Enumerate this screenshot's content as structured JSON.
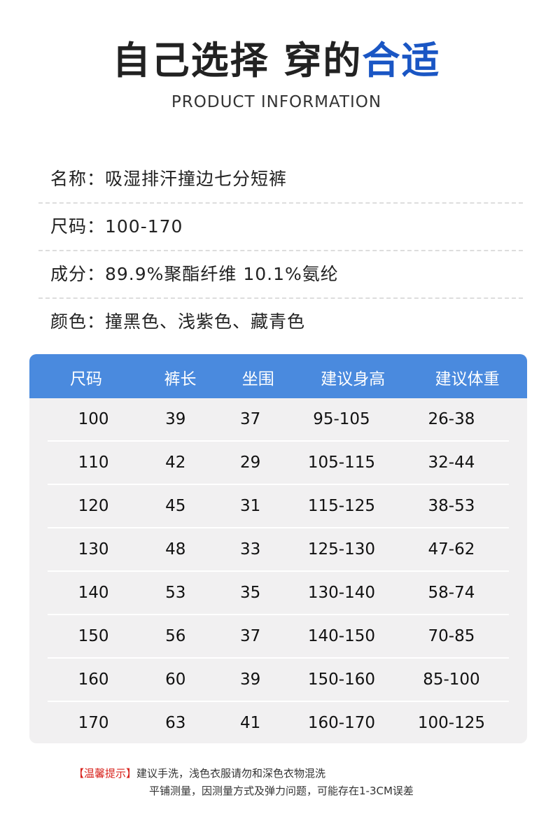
{
  "title": {
    "part1": "自己选择 穿的",
    "highlight": "合适"
  },
  "subtitle": "PRODUCT INFORMATION",
  "info": [
    "名称：吸湿排汗撞边七分短裤",
    "尺码：100-170",
    "成分：89.9%聚酯纤维 10.1%氨纶",
    "颜色：撞黑色、浅紫色、藏青色"
  ],
  "table": {
    "headers": [
      "尺码",
      "裤长",
      "坐围",
      "建议身高",
      "建议体重"
    ],
    "rows": [
      [
        "100",
        "39",
        "37",
        "95-105",
        "26-38"
      ],
      [
        "110",
        "42",
        "29",
        "105-115",
        "32-44"
      ],
      [
        "120",
        "45",
        "31",
        "115-125",
        "38-53"
      ],
      [
        "130",
        "48",
        "33",
        "125-130",
        "47-62"
      ],
      [
        "140",
        "53",
        "35",
        "130-140",
        "58-74"
      ],
      [
        "150",
        "56",
        "37",
        "140-150",
        "70-85"
      ],
      [
        "160",
        "60",
        "39",
        "150-160",
        "85-100"
      ],
      [
        "170",
        "63",
        "41",
        "160-170",
        "100-125"
      ]
    ]
  },
  "note": {
    "label": "【温馨提示】",
    "line1": "建议手洗，浅色衣服请勿和深色衣物混洗",
    "line2": "平铺测量，因测量方式及弹力问题，可能存在1-3CM误差"
  },
  "colors": {
    "accent": "#1a56c4",
    "header": "#4a8ade",
    "warning": "#d8231d"
  }
}
